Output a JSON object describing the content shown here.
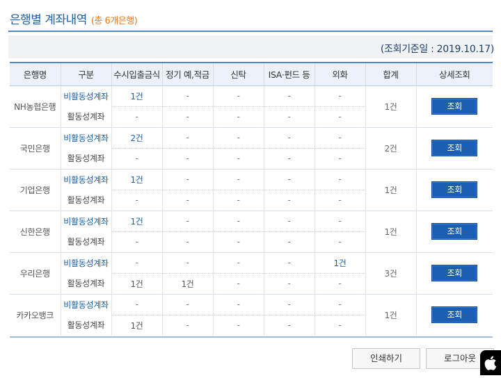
{
  "header": {
    "title": "은행별 계좌내역",
    "count_label": "(총 6개은행)",
    "query_date": "(조회기준일 : 2019.10.17)"
  },
  "table": {
    "columns": [
      "은행명",
      "구분",
      "수시입출금식",
      "정기 예,적금",
      "신탁",
      "ISA·펀드 등",
      "외화",
      "합계",
      "상세조회"
    ],
    "banks": [
      {
        "name": "NH농협은행",
        "total": "1건",
        "button": "조회",
        "rows": [
          {
            "type": "비활동성계좌",
            "cells": [
              "1건",
              "-",
              "-",
              "-",
              "-"
            ]
          },
          {
            "type": "활동성계좌",
            "cells": [
              "-",
              "-",
              "-",
              "-",
              "-"
            ]
          }
        ]
      },
      {
        "name": "국민은행",
        "total": "2건",
        "button": "조회",
        "rows": [
          {
            "type": "비활동성계좌",
            "cells": [
              "2건",
              "-",
              "-",
              "-",
              "-"
            ]
          },
          {
            "type": "활동성계좌",
            "cells": [
              "-",
              "-",
              "-",
              "-",
              "-"
            ]
          }
        ]
      },
      {
        "name": "기업은행",
        "total": "1건",
        "button": "조회",
        "rows": [
          {
            "type": "비활동성계좌",
            "cells": [
              "1건",
              "-",
              "-",
              "-",
              "-"
            ]
          },
          {
            "type": "활동성계좌",
            "cells": [
              "-",
              "-",
              "-",
              "-",
              "-"
            ]
          }
        ]
      },
      {
        "name": "신한은행",
        "total": "1건",
        "button": "조회",
        "rows": [
          {
            "type": "비활동성계좌",
            "cells": [
              "1건",
              "-",
              "-",
              "-",
              "-"
            ]
          },
          {
            "type": "활동성계좌",
            "cells": [
              "-",
              "-",
              "-",
              "-",
              "-"
            ]
          }
        ]
      },
      {
        "name": "우리은행",
        "total": "3건",
        "button": "조회",
        "rows": [
          {
            "type": "비활동성계좌",
            "cells": [
              "-",
              "-",
              "-",
              "-",
              "1건"
            ]
          },
          {
            "type": "활동성계좌",
            "cells": [
              "1건",
              "1건",
              "-",
              "-",
              "-"
            ]
          }
        ]
      },
      {
        "name": "카카오뱅크",
        "total": "1건",
        "button": "조회",
        "rows": [
          {
            "type": "비활동성계좌",
            "cells": [
              "-",
              "-",
              "-",
              "-",
              "-"
            ]
          },
          {
            "type": "활동성계좌",
            "cells": [
              "1건",
              "-",
              "-",
              "-",
              "-"
            ]
          }
        ]
      }
    ]
  },
  "footer": {
    "print_label": "인쇄하기",
    "logout_label": "로그아웃"
  },
  "logo": {
    "icon": "apple-logo-icon"
  },
  "colors": {
    "accent": "#1a5fa8",
    "count": "#e07b2a",
    "button": "#1c5eb2",
    "header_bg": "#eaf1f8"
  }
}
